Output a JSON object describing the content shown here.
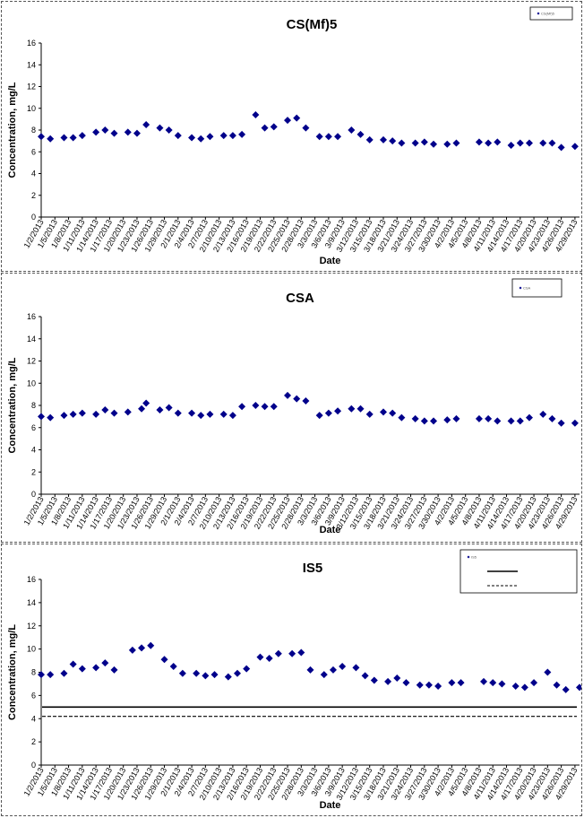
{
  "chart_data": [
    {
      "type": "scatter",
      "title": "CS(Mf)5",
      "xlabel": "Date",
      "ylabel": "Concentration, mg/L",
      "ylim": [
        0,
        16
      ],
      "yticks": [
        0,
        2,
        4,
        6,
        8,
        10,
        12,
        14,
        16
      ],
      "xlim": [
        "2013-01-02",
        "2013-04-30"
      ],
      "xticks": [
        "1/2/2013",
        "1/5/2013",
        "1/8/2013",
        "1/11/2013",
        "1/14/2013",
        "1/17/2013",
        "1/20/2013",
        "1/23/2013",
        "1/26/2013",
        "1/29/2013",
        "2/1/2013",
        "2/4/2013",
        "2/7/2013",
        "2/10/2013",
        "2/13/2013",
        "2/16/2013",
        "2/19/2013",
        "2/22/2013",
        "2/25/2013",
        "2/28/2013",
        "3/3/2013",
        "3/6/2013",
        "3/9/2013",
        "3/12/2013",
        "3/15/2013",
        "3/18/2013",
        "3/21/2013",
        "3/24/2013",
        "3/27/2013",
        "3/30/2013",
        "4/2/2013",
        "4/5/2013",
        "4/8/2013",
        "4/11/2013",
        "4/14/2013",
        "4/17/2013",
        "4/20/2013",
        "4/23/2013",
        "4/26/2013",
        "4/29/2013"
      ],
      "legend": {
        "position": "top-right",
        "entries": [
          "CS(Mf)5"
        ]
      },
      "series": [
        {
          "name": "CS(Mf)5",
          "color": "#00008B",
          "marker": "diamond",
          "x": [
            "2013-01-02",
            "2013-01-04",
            "2013-01-07",
            "2013-01-09",
            "2013-01-11",
            "2013-01-14",
            "2013-01-16",
            "2013-01-18",
            "2013-01-21",
            "2013-01-23",
            "2013-01-25",
            "2013-01-28",
            "2013-01-30",
            "2013-02-01",
            "2013-02-04",
            "2013-02-06",
            "2013-02-08",
            "2013-02-11",
            "2013-02-13",
            "2013-02-15",
            "2013-02-18",
            "2013-02-20",
            "2013-02-22",
            "2013-02-25",
            "2013-02-27",
            "2013-03-01",
            "2013-03-04",
            "2013-03-06",
            "2013-03-08",
            "2013-03-11",
            "2013-03-13",
            "2013-03-15",
            "2013-03-18",
            "2013-03-20",
            "2013-03-22",
            "2013-03-25",
            "2013-03-27",
            "2013-03-29",
            "2013-04-01",
            "2013-04-03",
            "2013-04-08",
            "2013-04-10",
            "2013-04-12",
            "2013-04-15",
            "2013-04-17",
            "2013-04-19",
            "2013-04-22",
            "2013-04-24",
            "2013-04-26",
            "2013-04-29"
          ],
          "y": [
            7.4,
            7.2,
            7.3,
            7.3,
            7.5,
            7.8,
            8.0,
            7.7,
            7.8,
            7.7,
            8.5,
            8.2,
            8.0,
            7.5,
            7.3,
            7.2,
            7.4,
            7.5,
            7.5,
            7.6,
            9.4,
            8.2,
            8.3,
            8.9,
            9.1,
            8.2,
            7.4,
            7.4,
            7.4,
            8.0,
            7.6,
            7.1,
            7.1,
            7.0,
            6.8,
            6.8,
            6.9,
            6.7,
            6.7,
            6.8,
            6.9,
            6.8,
            6.9,
            6.6,
            6.8,
            6.8,
            6.8,
            6.8,
            6.4,
            6.5
          ]
        }
      ]
    },
    {
      "type": "scatter",
      "title": "CSA",
      "xlabel": "Date",
      "ylabel": "Concentration, mg/L",
      "ylim": [
        0,
        16
      ],
      "yticks": [
        0,
        2,
        4,
        6,
        8,
        10,
        12,
        14,
        16
      ],
      "xlim": [
        "2013-01-02",
        "2013-04-30"
      ],
      "xticks": [
        "1/2/2013",
        "1/5/2013",
        "1/8/2013",
        "1/11/2013",
        "1/14/2013",
        "1/17/2013",
        "1/20/2013",
        "1/23/2013",
        "1/26/2013",
        "1/29/2013",
        "2/1/2013",
        "2/4/2013",
        "2/7/2013",
        "2/10/2013",
        "2/13/2013",
        "2/16/2013",
        "2/19/2013",
        "2/22/2013",
        "2/25/2013",
        "2/28/2013",
        "3/3/2013",
        "3/6/2013",
        "3/9/2013",
        "3/12/2013",
        "3/15/2013",
        "3/18/2013",
        "3/21/2013",
        "3/24/2013",
        "3/27/2013",
        "3/30/2013",
        "4/2/2013",
        "4/5/2013",
        "4/8/2013",
        "4/11/2013",
        "4/14/2013",
        "4/17/2013",
        "4/20/2013",
        "4/23/2013",
        "4/26/2013",
        "4/29/2013"
      ],
      "legend": {
        "position": "top-right",
        "entries": [
          "CSA"
        ]
      },
      "series": [
        {
          "name": "CSA",
          "color": "#00008B",
          "marker": "diamond",
          "x": [
            "2013-01-02",
            "2013-01-04",
            "2013-01-07",
            "2013-01-09",
            "2013-01-11",
            "2013-01-14",
            "2013-01-16",
            "2013-01-18",
            "2013-01-21",
            "2013-01-24",
            "2013-01-25",
            "2013-01-28",
            "2013-01-30",
            "2013-02-01",
            "2013-02-04",
            "2013-02-06",
            "2013-02-08",
            "2013-02-11",
            "2013-02-13",
            "2013-02-15",
            "2013-02-18",
            "2013-02-20",
            "2013-02-22",
            "2013-02-25",
            "2013-02-27",
            "2013-03-01",
            "2013-03-04",
            "2013-03-06",
            "2013-03-08",
            "2013-03-11",
            "2013-03-13",
            "2013-03-15",
            "2013-03-18",
            "2013-03-20",
            "2013-03-22",
            "2013-03-25",
            "2013-03-27",
            "2013-03-29",
            "2013-04-01",
            "2013-04-03",
            "2013-04-08",
            "2013-04-10",
            "2013-04-12",
            "2013-04-15",
            "2013-04-17",
            "2013-04-19",
            "2013-04-22",
            "2013-04-24",
            "2013-04-26",
            "2013-04-29"
          ],
          "y": [
            7.0,
            6.9,
            7.1,
            7.2,
            7.3,
            7.2,
            7.6,
            7.3,
            7.4,
            7.7,
            8.2,
            7.6,
            7.8,
            7.3,
            7.3,
            7.1,
            7.2,
            7.2,
            7.1,
            7.9,
            8.0,
            7.9,
            7.9,
            8.9,
            8.6,
            8.4,
            7.1,
            7.3,
            7.5,
            7.7,
            7.7,
            7.2,
            7.4,
            7.3,
            6.9,
            6.8,
            6.6,
            6.6,
            6.7,
            6.8,
            6.8,
            6.8,
            6.6,
            6.6,
            6.6,
            6.9,
            7.2,
            6.8,
            6.4,
            6.4
          ]
        }
      ]
    },
    {
      "type": "scatter",
      "title": "IS5",
      "xlabel": "Date",
      "ylabel": "Concentration, mg/L",
      "ylim": [
        0,
        16
      ],
      "yticks": [
        0,
        2,
        4,
        6,
        8,
        10,
        12,
        14,
        16
      ],
      "xlim": [
        "2013-01-02",
        "2013-04-30"
      ],
      "xticks": [
        "1/2/2013",
        "1/5/2013",
        "1/8/2013",
        "1/11/2013",
        "1/14/2013",
        "1/17/2013",
        "1/20/2013",
        "1/23/2013",
        "1/26/2013",
        "1/29/2013",
        "2/1/2013",
        "2/4/2013",
        "2/7/2013",
        "2/10/2013",
        "2/13/2013",
        "2/16/2013",
        "2/19/2013",
        "2/22/2013",
        "2/25/2013",
        "2/28/2013",
        "3/3/2013",
        "3/6/2013",
        "3/9/2013",
        "3/12/2013",
        "3/15/2013",
        "3/18/2013",
        "3/21/2013",
        "3/24/2013",
        "3/27/2013",
        "3/30/2013",
        "4/2/2013",
        "4/5/2013",
        "4/8/2013",
        "4/11/2013",
        "4/14/2013",
        "4/17/2013",
        "4/20/2013",
        "4/23/2013",
        "4/26/2013",
        "4/29/2013"
      ],
      "legend": {
        "position": "top-right",
        "entries": [
          "IS5",
          "",
          ""
        ]
      },
      "reference_lines": [
        {
          "y": 5.0,
          "style": "solid",
          "color": "#000000"
        },
        {
          "y": 4.2,
          "style": "dashed",
          "color": "#000000"
        }
      ],
      "series": [
        {
          "name": "IS5",
          "color": "#00008B",
          "marker": "diamond",
          "x": [
            "2013-01-02",
            "2013-01-04",
            "2013-01-07",
            "2013-01-09",
            "2013-01-11",
            "2013-01-14",
            "2013-01-16",
            "2013-01-18",
            "2013-01-22",
            "2013-01-24",
            "2013-01-26",
            "2013-01-29",
            "2013-01-31",
            "2013-02-02",
            "2013-02-05",
            "2013-02-07",
            "2013-02-09",
            "2013-02-12",
            "2013-02-14",
            "2013-02-16",
            "2013-02-19",
            "2013-02-21",
            "2013-02-23",
            "2013-02-26",
            "2013-02-28",
            "2013-03-02",
            "2013-03-05",
            "2013-03-07",
            "2013-03-09",
            "2013-03-12",
            "2013-03-14",
            "2013-03-16",
            "2013-03-19",
            "2013-03-21",
            "2013-03-23",
            "2013-03-26",
            "2013-03-28",
            "2013-03-30",
            "2013-04-02",
            "2013-04-04",
            "2013-04-09",
            "2013-04-11",
            "2013-04-13",
            "2013-04-16",
            "2013-04-18",
            "2013-04-20",
            "2013-04-23",
            "2013-04-25",
            "2013-04-27",
            "2013-04-30"
          ],
          "y": [
            7.8,
            7.8,
            7.9,
            8.7,
            8.3,
            8.4,
            8.8,
            8.2,
            9.9,
            10.1,
            10.3,
            9.1,
            8.5,
            7.9,
            7.9,
            7.7,
            7.8,
            7.6,
            7.9,
            8.3,
            9.3,
            9.2,
            9.6,
            9.6,
            9.7,
            8.2,
            7.8,
            8.2,
            8.5,
            8.4,
            7.7,
            7.3,
            7.2,
            7.5,
            7.1,
            6.9,
            6.9,
            6.8,
            7.1,
            7.1,
            7.2,
            7.1,
            7.0,
            6.8,
            6.7,
            7.1,
            8.0,
            6.9,
            6.5,
            6.7
          ]
        }
      ]
    }
  ]
}
